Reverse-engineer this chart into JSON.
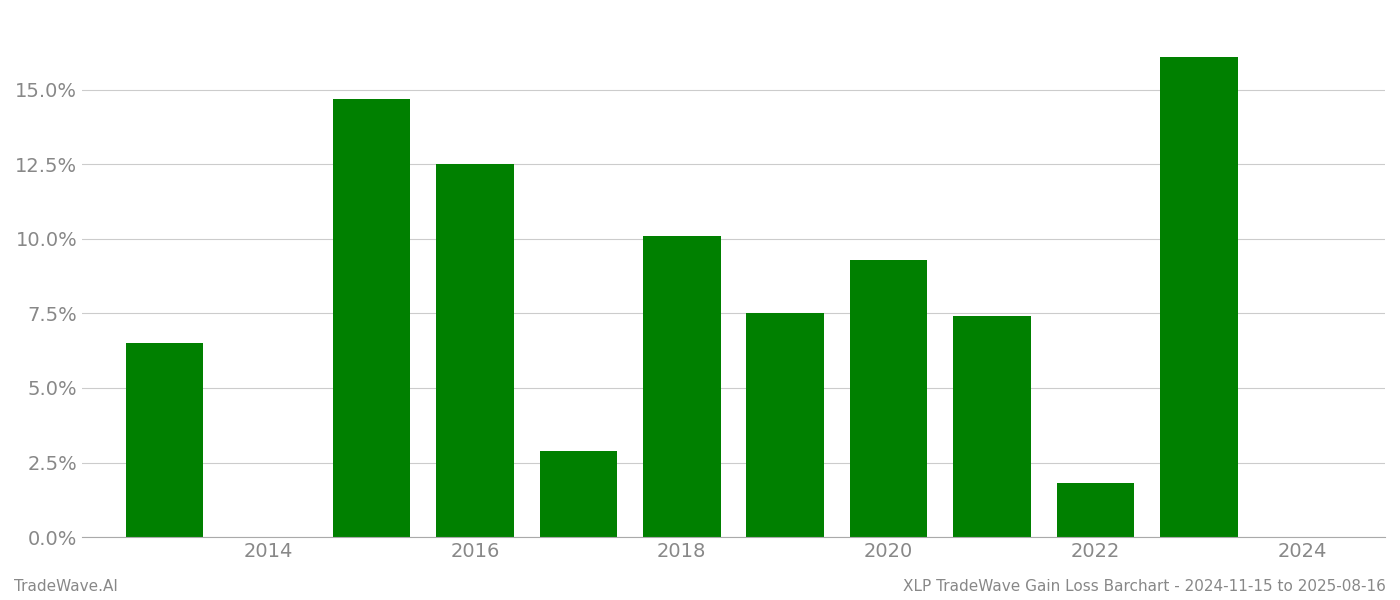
{
  "years": [
    2013,
    2015,
    2016,
    2017,
    2018,
    2019,
    2020,
    2021,
    2022,
    2023
  ],
  "values": [
    0.065,
    0.147,
    0.125,
    0.029,
    0.101,
    0.075,
    0.093,
    0.074,
    0.018,
    0.161
  ],
  "bar_color": "#008000",
  "background_color": "#ffffff",
  "grid_color": "#cccccc",
  "axis_label_color": "#888888",
  "footer_left": "TradeWave.AI",
  "footer_right": "XLP TradeWave Gain Loss Barchart - 2024-11-15 to 2025-08-16",
  "footer_color": "#888888",
  "footer_fontsize": 11,
  "xlim": [
    2012.2,
    2024.8
  ],
  "ylim": [
    0.0,
    0.175
  ],
  "yticks": [
    0.0,
    0.025,
    0.05,
    0.075,
    0.1,
    0.125,
    0.15
  ],
  "xticks": [
    2014,
    2016,
    2018,
    2020,
    2022,
    2024
  ],
  "bar_width": 0.75,
  "tick_fontsize": 14,
  "spine_color": "#aaaaaa"
}
